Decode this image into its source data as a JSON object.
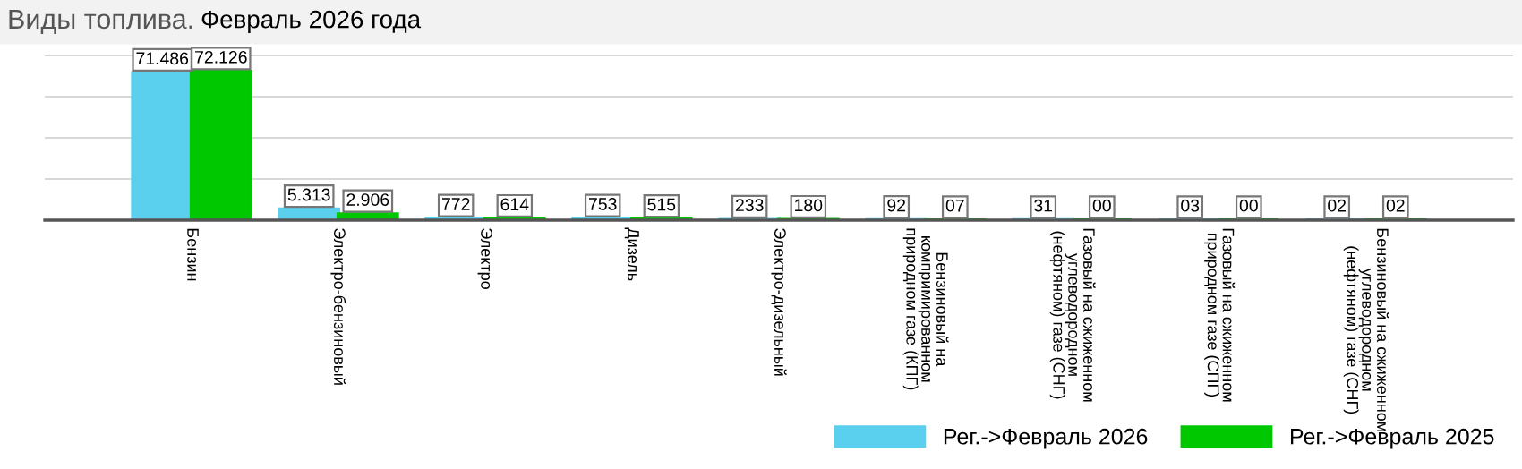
{
  "chart_data": {
    "type": "bar",
    "title": "Виды топлива.",
    "subtitle": "Февраль 2026 года",
    "categories": [
      "Бензин",
      "Электро-бензиновый",
      "Электро",
      "Дизель",
      "Электро-дизельный",
      "Бензиновый на компримированном природном газе (КПГ)",
      "Газовый на сжиженном углеводородном (нефтяном) газе (СНГ)",
      "Газовый на сжиженном природном газе (СПГ)",
      "Бензиновый на сжиженном углеводородном (нефтяном) газе (СНГ)"
    ],
    "series": [
      {
        "name": "Рег.->Февраль 2026",
        "color": "#5bcfee",
        "values": [
          71486,
          5313,
          772,
          753,
          233,
          92,
          31,
          3,
          2
        ],
        "value_labels": [
          "71.486",
          "5.313",
          "772",
          "753",
          "233",
          "92",
          "31",
          "03",
          "02"
        ]
      },
      {
        "name": "Рег.->Февраль 2025",
        "color": "#00c800",
        "values": [
          72126,
          2906,
          614,
          515,
          180,
          7,
          0,
          0,
          2
        ],
        "value_labels": [
          "72.126",
          "2.906",
          "614",
          "515",
          "180",
          "07",
          "00",
          "00",
          "02"
        ]
      }
    ],
    "ylim": [
      0,
      80000
    ],
    "yticks": [
      {
        "value": 0,
        "label": null
      },
      {
        "value": 20000,
        "label": null
      },
      {
        "value": 40000,
        "label": null
      },
      {
        "value": 60000,
        "label": null
      },
      {
        "value": 80000,
        "label": null
      }
    ],
    "grid": "y",
    "tick_labels": "x",
    "legend": "bottom right"
  }
}
